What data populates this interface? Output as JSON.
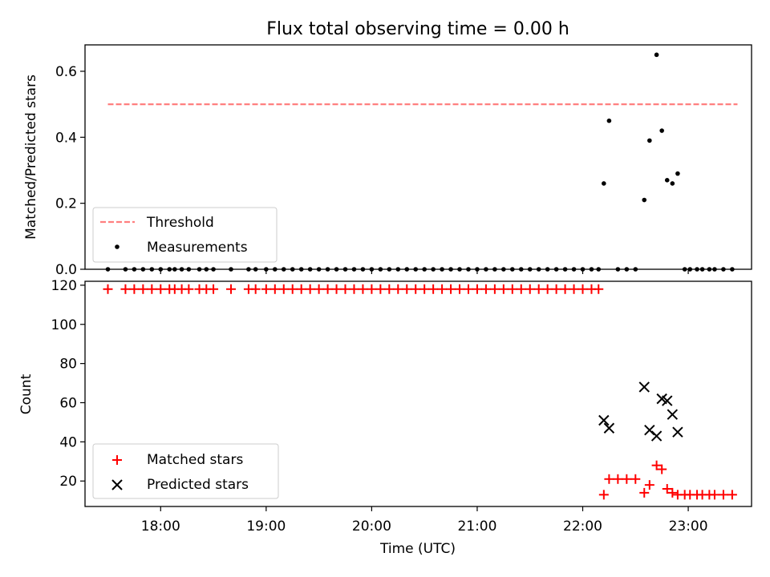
{
  "chart_data": [
    {
      "type": "scatter",
      "panel": "top",
      "title": "Flux total observing time = 0.00 h",
      "ylabel": "Matched/Predicted stars",
      "xlabel": "",
      "xlim": [
        "17:17",
        "23:36"
      ],
      "ylim": [
        0,
        0.68
      ],
      "yticks": [
        "0.0",
        "0.2",
        "0.4",
        "0.6"
      ],
      "grid": false,
      "legend_position": "lower-left",
      "threshold": {
        "name": "Threshold",
        "value": 0.5,
        "x_range": [
          "17:30",
          "23:28"
        ],
        "color": "#ff7f7f"
      },
      "series": [
        {
          "name": "Measurements",
          "color": "#000000",
          "x": [
            "17:30",
            "17:40",
            "17:45",
            "17:50",
            "17:55",
            "18:00",
            "18:05",
            "18:08",
            "18:12",
            "18:16",
            "18:22",
            "18:26",
            "18:30",
            "18:40",
            "18:50",
            "18:54",
            "19:00",
            "19:05",
            "19:10",
            "19:15",
            "19:20",
            "19:25",
            "19:30",
            "19:35",
            "19:40",
            "19:45",
            "19:50",
            "19:55",
            "20:00",
            "20:05",
            "20:10",
            "20:15",
            "20:20",
            "20:25",
            "20:30",
            "20:35",
            "20:40",
            "20:45",
            "20:50",
            "20:55",
            "21:00",
            "21:05",
            "21:10",
            "21:15",
            "21:20",
            "21:25",
            "21:30",
            "21:35",
            "21:40",
            "21:45",
            "21:50",
            "21:55",
            "22:00",
            "22:05",
            "22:09",
            "22:12",
            "22:15",
            "22:20",
            "22:25",
            "22:30",
            "22:35",
            "22:38",
            "22:42",
            "22:45",
            "22:48",
            "22:51",
            "22:54",
            "22:58",
            "23:01",
            "23:05",
            "23:08",
            "23:12",
            "23:15",
            "23:20",
            "23:25"
          ],
          "y": [
            0,
            0,
            0,
            0,
            0,
            0,
            0,
            0,
            0,
            0,
            0,
            0,
            0,
            0,
            0,
            0,
            0,
            0,
            0,
            0,
            0,
            0,
            0,
            0,
            0,
            0,
            0,
            0,
            0,
            0,
            0,
            0,
            0,
            0,
            0,
            0,
            0,
            0,
            0,
            0,
            0,
            0,
            0,
            0,
            0,
            0,
            0,
            0,
            0,
            0,
            0,
            0,
            0,
            0,
            0,
            0.26,
            0.45,
            0,
            0,
            0,
            0.21,
            0.39,
            0.65,
            0.42,
            0.27,
            0.26,
            0.29,
            0,
            0,
            0,
            0,
            0,
            0,
            0,
            0
          ]
        }
      ]
    },
    {
      "type": "scatter",
      "panel": "bottom",
      "title": "",
      "xlabel": "Time (UTC)",
      "ylabel": "Count",
      "xlim": [
        "17:17",
        "23:36"
      ],
      "ylim": [
        7,
        122
      ],
      "xticks": [
        "18:00",
        "19:00",
        "20:00",
        "21:00",
        "22:00",
        "23:00"
      ],
      "yticks": [
        "20",
        "40",
        "60",
        "80",
        "100",
        "120"
      ],
      "grid": false,
      "legend_position": "lower-left",
      "series": [
        {
          "name": "Matched stars",
          "marker": "+",
          "color": "#ff0000",
          "x": [
            "17:30",
            "17:40",
            "17:45",
            "17:50",
            "17:55",
            "18:00",
            "18:05",
            "18:08",
            "18:12",
            "18:16",
            "18:22",
            "18:26",
            "18:30",
            "18:40",
            "18:50",
            "18:54",
            "19:00",
            "19:05",
            "19:10",
            "19:15",
            "19:20",
            "19:25",
            "19:30",
            "19:35",
            "19:40",
            "19:45",
            "19:50",
            "19:55",
            "20:00",
            "20:05",
            "20:10",
            "20:15",
            "20:20",
            "20:25",
            "20:30",
            "20:35",
            "20:40",
            "20:45",
            "20:50",
            "20:55",
            "21:00",
            "21:05",
            "21:10",
            "21:15",
            "21:20",
            "21:25",
            "21:30",
            "21:35",
            "21:40",
            "21:45",
            "21:50",
            "21:55",
            "22:00",
            "22:05",
            "22:09",
            "22:12",
            "22:15",
            "22:20",
            "22:25",
            "22:30",
            "22:35",
            "22:38",
            "22:42",
            "22:45",
            "22:48",
            "22:51",
            "22:54",
            "22:58",
            "23:01",
            "23:05",
            "23:08",
            "23:12",
            "23:15",
            "23:20",
            "23:25"
          ],
          "y": [
            118,
            118,
            118,
            118,
            118,
            118,
            118,
            118,
            118,
            118,
            118,
            118,
            118,
            118,
            118,
            118,
            118,
            118,
            118,
            118,
            118,
            118,
            118,
            118,
            118,
            118,
            118,
            118,
            118,
            118,
            118,
            118,
            118,
            118,
            118,
            118,
            118,
            118,
            118,
            118,
            118,
            118,
            118,
            118,
            118,
            118,
            118,
            118,
            118,
            118,
            118,
            118,
            118,
            118,
            118,
            13,
            21,
            21,
            21,
            21,
            14,
            18,
            28,
            26,
            16,
            14,
            13,
            13,
            13,
            13,
            13,
            13,
            13,
            13,
            13
          ]
        },
        {
          "name": "Predicted stars",
          "marker": "x",
          "color": "#000000",
          "x": [
            "22:12",
            "22:15",
            "22:35",
            "22:38",
            "22:42",
            "22:45",
            "22:48",
            "22:51",
            "22:54"
          ],
          "y": [
            51,
            47,
            68,
            46,
            43,
            62,
            61,
            54,
            45
          ]
        }
      ]
    }
  ]
}
